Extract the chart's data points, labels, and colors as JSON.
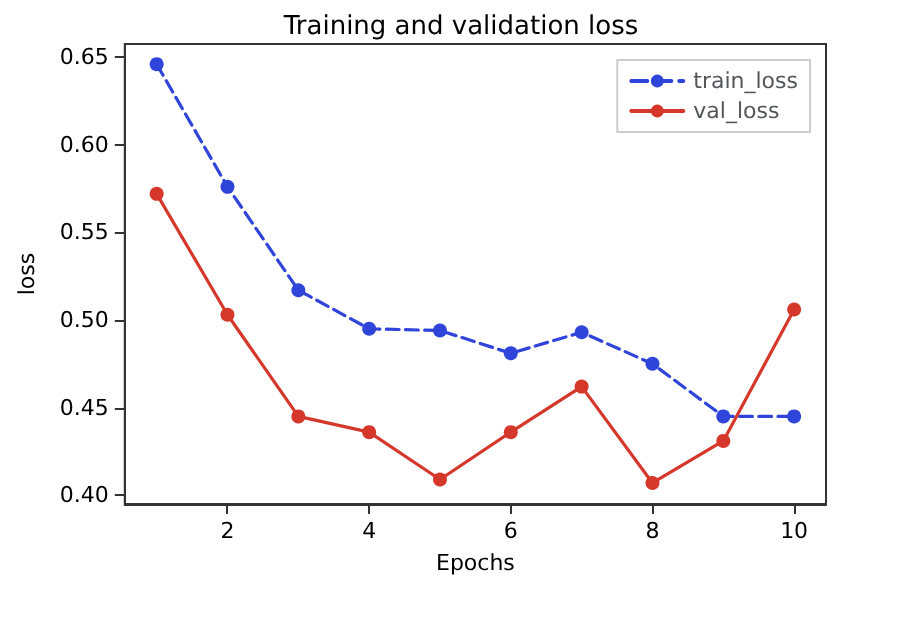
{
  "chart_data": {
    "type": "line",
    "title": "Training and validation loss",
    "xlabel": "Epochs",
    "ylabel": "loss",
    "x": [
      1,
      2,
      3,
      4,
      5,
      6,
      7,
      8,
      9,
      10
    ],
    "series": [
      {
        "name": "train_loss",
        "color": "#2f44d8",
        "line_style": "dashed",
        "values": [
          0.646,
          0.576,
          0.517,
          0.495,
          0.494,
          0.481,
          0.493,
          0.475,
          0.445,
          0.445
        ]
      },
      {
        "name": "val_loss",
        "color": "#d5382b",
        "line_style": "solid",
        "values": [
          0.572,
          0.503,
          0.445,
          0.436,
          0.409,
          0.436,
          0.462,
          0.407,
          0.431,
          0.506
        ]
      }
    ],
    "xlim": [
      0.55,
      10.45
    ],
    "xticks": [
      2,
      4,
      6,
      8,
      10
    ],
    "ylim": [
      0.395,
      0.6575
    ],
    "yticks": [
      {
        "value": 0.4,
        "label": "0.40"
      },
      {
        "value": 0.45,
        "label": "0.45"
      },
      {
        "value": 0.5,
        "label": "0.50"
      },
      {
        "value": 0.55,
        "label": "0.55"
      },
      {
        "value": 0.6,
        "label": "0.60"
      },
      {
        "value": 0.65,
        "label": "0.65"
      }
    ],
    "marker": "circle",
    "grid": false,
    "legend": "top right"
  }
}
